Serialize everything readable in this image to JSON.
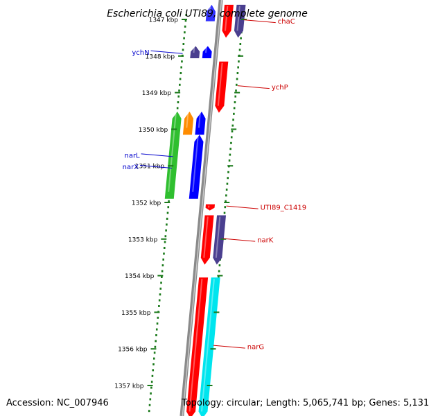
{
  "title": "Escherichia coli UTI89, complete genome",
  "accession": {
    "label": "Accession:",
    "value": "NC_007946"
  },
  "summary": {
    "topology_label": "Topology:",
    "topology": "circular",
    "length_label": "Length:",
    "length": "5,065,741 bp",
    "genes_label": "Genes:",
    "genes": "5,131"
  },
  "ticks": [
    {
      "kbp": 1347,
      "label": "1347 kbp"
    },
    {
      "kbp": 1348,
      "label": "1348 kbp"
    },
    {
      "kbp": 1349,
      "label": "1349 kbp"
    },
    {
      "kbp": 1350,
      "label": "1350 kbp"
    },
    {
      "kbp": 1351,
      "label": "1351 kbp"
    },
    {
      "kbp": 1352,
      "label": "1352 kbp"
    },
    {
      "kbp": 1353,
      "label": "1353 kbp"
    },
    {
      "kbp": 1354,
      "label": "1354 kbp"
    },
    {
      "kbp": 1355,
      "label": "1355 kbp"
    },
    {
      "kbp": 1356,
      "label": "1356 kbp"
    },
    {
      "kbp": 1357,
      "label": "1357 kbp"
    }
  ],
  "features": [
    {
      "start": 1346.6,
      "end": 1347.05,
      "strand": "+",
      "ring": 1,
      "color": "#3333ff"
    },
    {
      "start": 1346.6,
      "end": 1347.5,
      "strand": "-",
      "ring": 1,
      "color": "#ff0000",
      "label": "chaC"
    },
    {
      "start": 1346.6,
      "end": 1347.5,
      "strand": "-",
      "ring": 2,
      "color": "#4a3f8f"
    },
    {
      "start": 1347.73,
      "end": 1348.06,
      "strand": "+",
      "ring": 2,
      "color": "#4a3f8f",
      "label": "ychN"
    },
    {
      "start": 1347.73,
      "end": 1348.06,
      "strand": "+",
      "ring": 1,
      "color": "#0000ff"
    },
    {
      "start": 1348.15,
      "end": 1349.55,
      "strand": "-",
      "ring": 1,
      "color": "#ff0000",
      "label": "ychP"
    },
    {
      "start": 1349.52,
      "end": 1351.9,
      "strand": "+",
      "ring": 3,
      "color": "#2fbf2f",
      "label": "narL"
    },
    {
      "start": 1349.52,
      "end": 1350.15,
      "strand": "+",
      "ring": 2,
      "color": "#ff8c00"
    },
    {
      "start": 1349.52,
      "end": 1350.15,
      "strand": "+",
      "ring": 1,
      "color": "#0000ff"
    },
    {
      "start": 1350.15,
      "end": 1351.9,
      "strand": "+",
      "ring": 1,
      "color": "#0000ff",
      "label": "narX"
    },
    {
      "start": 1352.05,
      "end": 1352.22,
      "strand": "-",
      "ring": 1,
      "color": "#ff0000",
      "label": "UTI89_C1419"
    },
    {
      "start": 1352.35,
      "end": 1353.7,
      "strand": "-",
      "ring": 1,
      "color": "#ff0000",
      "label": "narK"
    },
    {
      "start": 1352.35,
      "end": 1353.7,
      "strand": "-",
      "ring": 2,
      "color": "#4a3f8f"
    },
    {
      "start": 1354.05,
      "end": 1357.9,
      "strand": "-",
      "ring": 1,
      "color": "#ff0000",
      "label": "narG"
    },
    {
      "start": 1354.05,
      "end": 1357.9,
      "strand": "-",
      "ring": 2,
      "color": "#00e5ee"
    }
  ],
  "colors": {
    "backbone": "#8a8a8a",
    "dots": "#1b7a1b",
    "label_plus": "#0000cc",
    "label_minus": "#cc0000",
    "title": "#000000"
  }
}
